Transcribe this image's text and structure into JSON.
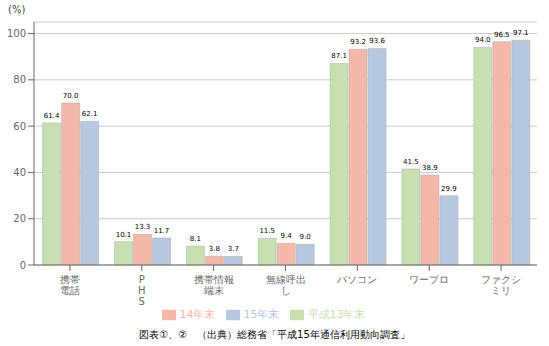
{
  "chart_data": {
    "type": "bar",
    "ylabel": "(%)",
    "annotations": [
      "図表①、②　（出典）総務省「平成15年通信利用動向調査」"
    ],
    "categories": [
      "携帯\n電話",
      "P\nH\nS",
      "携帯情報\n端末",
      "無線呼出\nし",
      "パソコン",
      "ワープロ",
      "ファクシ\nミリ"
    ],
    "series": [
      {
        "name": "平成13年末",
        "color": "#C8E0B0",
        "values": [
          61.4,
          10.1,
          8.1,
          11.5,
          87.1,
          41.5,
          94.0
        ],
        "value_labels": [
          "61.4",
          "10.1",
          "8.1",
          "11.5",
          "87.1",
          "41.5",
          "94.0"
        ]
      },
      {
        "name": "14年末",
        "color": "#F4B8A8",
        "values": [
          70.0,
          13.3,
          3.8,
          9.4,
          93.2,
          38.9,
          96.5
        ],
        "value_labels": [
          "70.0",
          "13.3",
          "3.8",
          "9.4",
          "93.2",
          "38.9",
          "96.5"
        ]
      },
      {
        "name": "15年末",
        "color": "#B8C8E0",
        "values": [
          62.1,
          11.7,
          3.7,
          9.0,
          93.6,
          29.9,
          97.1
        ],
        "value_labels": [
          "62.1",
          "11.7",
          "3.7",
          "9.0",
          "93.6",
          "29.9",
          "97.1"
        ]
      }
    ],
    "ylim": [
      0,
      105
    ],
    "yticks": [
      0,
      20,
      40,
      60,
      80,
      100
    ],
    "grid": true,
    "legend": "bottom",
    "data_labels": true
  }
}
